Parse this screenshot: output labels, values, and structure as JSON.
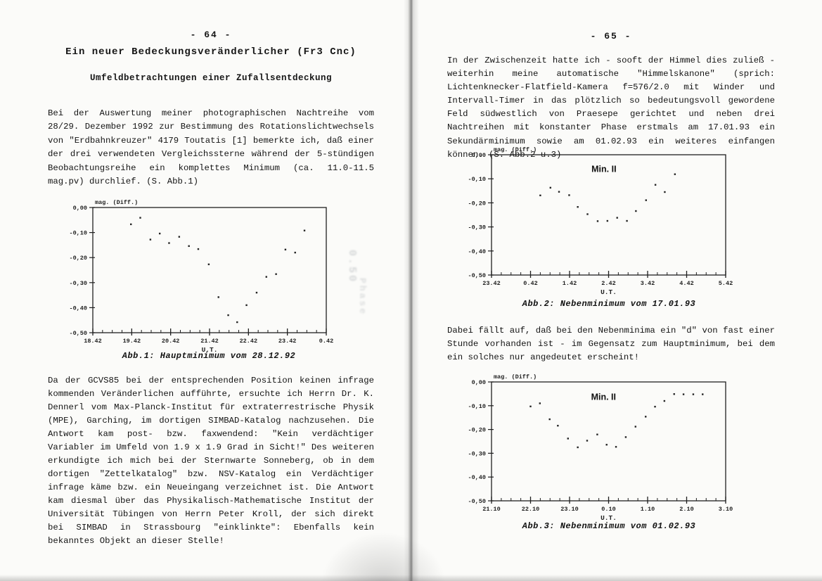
{
  "left_page": {
    "page_number": "- 64 -",
    "title": "Ein neuer Bedeckungsveränderlicher (Fr3 Cnc)",
    "subtitle": "Umfeldbetrachtungen einer Zufallsentdeckung",
    "paragraph1": "Bei der Auswertung meiner photographischen Nachtreihe vom 28/29. Dezember 1992 zur Bestimmung des Rotationslichtwechsels von \"Erdbahnkreuzer\" 4179 Toutatis [1] bemerkte ich, daß einer der drei verwendeten Vergleichssterne während der 5-stündigen Beobachtungsreihe ein komplettes Minimum (ca. 11.0-11.5 mag.pv) durchlief. (S. Abb.1)",
    "paragraph2": "Da der GCVS85 bei der entsprechenden Position keinen infrage kommenden Veränderlichen aufführte, ersuchte ich Herrn Dr. K. Dennerl vom Max-Planck-Institut für extraterrestrische Physik (MPE), Garching, im dortigen SIMBAD-Katalog nachzusehen. Die Antwort kam post- bzw. faxwendend: \"Kein verdächtiger Variabler im Umfeld von 1.9 x 1.9 Grad in Sicht!\" Des weiteren erkundigte ich mich bei der Sternwarte Sonneberg, ob in dem dortigen \"Zettelkatalog\" bzw. NSV-Katalog ein Verdächtiger infrage käme bzw. ein Neueingang verzeichnet ist. Die Antwort kam diesmal über das Physikalisch-Mathematische Institut der Universität Tübingen von Herrn Peter Kroll, der sich direkt bei SIMBAD in Strassbourg \"einklinkte\": Ebenfalls kein bekanntes Objekt an dieser Stelle!",
    "bleedthrough_text1": "0.50",
    "bleedthrough_text2": "Phase"
  },
  "right_page": {
    "page_number": "- 65 -",
    "paragraph1": "In der Zwischenzeit hatte ich - sooft der Himmel dies zuließ - weiterhin meine automatische \"Himmelskanone\" (sprich: Lichtenknecker-Flatfield-Kamera f=576/2.0 mit Winder und Intervall-Timer in das plötzlich so bedeutungsvoll gewordene Feld südwestlich von Praesepe gerichtet und neben drei Nachtreihen mit konstanter Phase erstmals am 17.01.93 ein Sekundärminimum sowie am 01.02.93 ein weiteres einfangen können. (S. Abb.2 u.3)",
    "paragraph2": "Dabei fällt auf, daß bei den Nebenminima ein \"d\" von fast einer Stunde vorhanden ist - im Gegensatz zum Hauptminimum, bei dem ein solches nur angedeutet erscheint!"
  },
  "chart_data": [
    {
      "type": "scatter",
      "caption": "Abb.1: Hauptminimum vom 28.12.92",
      "ylabel": "mag. (Diff.)",
      "xlabel": "U.T.",
      "x_ticks": [
        "18.42",
        "19.42",
        "20.42",
        "21.42",
        "22.42",
        "23.42",
        "0.42"
      ],
      "y_ticks": [
        "0,00",
        "-0,10",
        "-0,20",
        "-0,30",
        "-0,40",
        "-0,50"
      ],
      "x_start": 18.42,
      "x_range_hours": 6,
      "x_minor_step": 0.25,
      "ylim": [
        -0.5,
        0
      ],
      "grid": false,
      "annotation": null,
      "points": [
        [
          19.4,
          -0.067
        ],
        [
          19.64,
          -0.041
        ],
        [
          19.9,
          -0.128
        ],
        [
          20.14,
          -0.104
        ],
        [
          20.38,
          -0.142
        ],
        [
          20.64,
          -0.117
        ],
        [
          20.89,
          -0.154
        ],
        [
          21.13,
          -0.166
        ],
        [
          21.4,
          -0.227
        ],
        [
          21.65,
          -0.358
        ],
        [
          21.9,
          -0.43
        ],
        [
          22.13,
          -0.458
        ],
        [
          22.37,
          -0.39
        ],
        [
          22.63,
          -0.34
        ],
        [
          22.88,
          -0.277
        ],
        [
          23.13,
          -0.266
        ],
        [
          23.37,
          -0.168
        ],
        [
          23.62,
          -0.18
        ],
        [
          23.86,
          -0.092
        ]
      ]
    },
    {
      "type": "scatter",
      "caption": "Abb.2: Nebenminimum vom 17.01.93",
      "ylabel": "mag. (Diff.)",
      "xlabel": "U.T.",
      "x_ticks": [
        "23.42",
        "0.42",
        "1.42",
        "2.42",
        "3.42",
        "4.42",
        "5.42"
      ],
      "y_ticks": [
        "0,00",
        "-0,10",
        "-0,20",
        "-0,30",
        "-0,40",
        "-0,50"
      ],
      "x_start": 23.42,
      "x_range_hours": 6,
      "x_minor_step": 0.25,
      "ylim": [
        -0.5,
        0
      ],
      "grid": false,
      "annotation": {
        "text": "Min. II",
        "x": 2.3,
        "y": -0.072
      },
      "points": [
        [
          0.67,
          -0.169
        ],
        [
          0.93,
          -0.137
        ],
        [
          1.15,
          -0.154
        ],
        [
          1.41,
          -0.168
        ],
        [
          1.63,
          -0.217
        ],
        [
          1.88,
          -0.247
        ],
        [
          2.14,
          -0.276
        ],
        [
          2.39,
          -0.275
        ],
        [
          2.64,
          -0.262
        ],
        [
          2.89,
          -0.275
        ],
        [
          3.12,
          -0.234
        ],
        [
          3.38,
          -0.189
        ],
        [
          3.62,
          -0.125
        ],
        [
          3.86,
          -0.155
        ],
        [
          4.12,
          -0.081
        ]
      ]
    },
    {
      "type": "scatter",
      "caption": "Abb.3: Nebenminimum vom 01.02.93",
      "ylabel": "mag. (Diff.)",
      "xlabel": "U.T.",
      "x_ticks": [
        "21.10",
        "22.10",
        "23.10",
        "0.10",
        "1.10",
        "2.10",
        "3.10"
      ],
      "y_ticks": [
        "0,00",
        "-0,10",
        "-0,20",
        "-0,30",
        "-0,40",
        "-0,50"
      ],
      "x_start": 21.1,
      "x_range_hours": 6,
      "x_minor_step": 0.25,
      "ylim": [
        -0.5,
        0
      ],
      "grid": false,
      "annotation": {
        "text": "Min. II",
        "x": 23.97,
        "y": -0.075
      },
      "points": [
        [
          22.1,
          -0.103
        ],
        [
          22.34,
          -0.09
        ],
        [
          22.59,
          -0.157
        ],
        [
          22.8,
          -0.184
        ],
        [
          23.06,
          -0.238
        ],
        [
          23.31,
          -0.275
        ],
        [
          23.55,
          -0.247
        ],
        [
          23.81,
          -0.221
        ],
        [
          0.05,
          -0.264
        ],
        [
          0.29,
          -0.273
        ],
        [
          0.54,
          -0.232
        ],
        [
          0.79,
          -0.188
        ],
        [
          1.05,
          -0.146
        ],
        [
          1.29,
          -0.104
        ],
        [
          1.53,
          -0.08
        ],
        [
          1.78,
          -0.051
        ],
        [
          2.02,
          -0.052
        ],
        [
          2.27,
          -0.052
        ],
        [
          2.51,
          -0.052
        ]
      ]
    }
  ]
}
